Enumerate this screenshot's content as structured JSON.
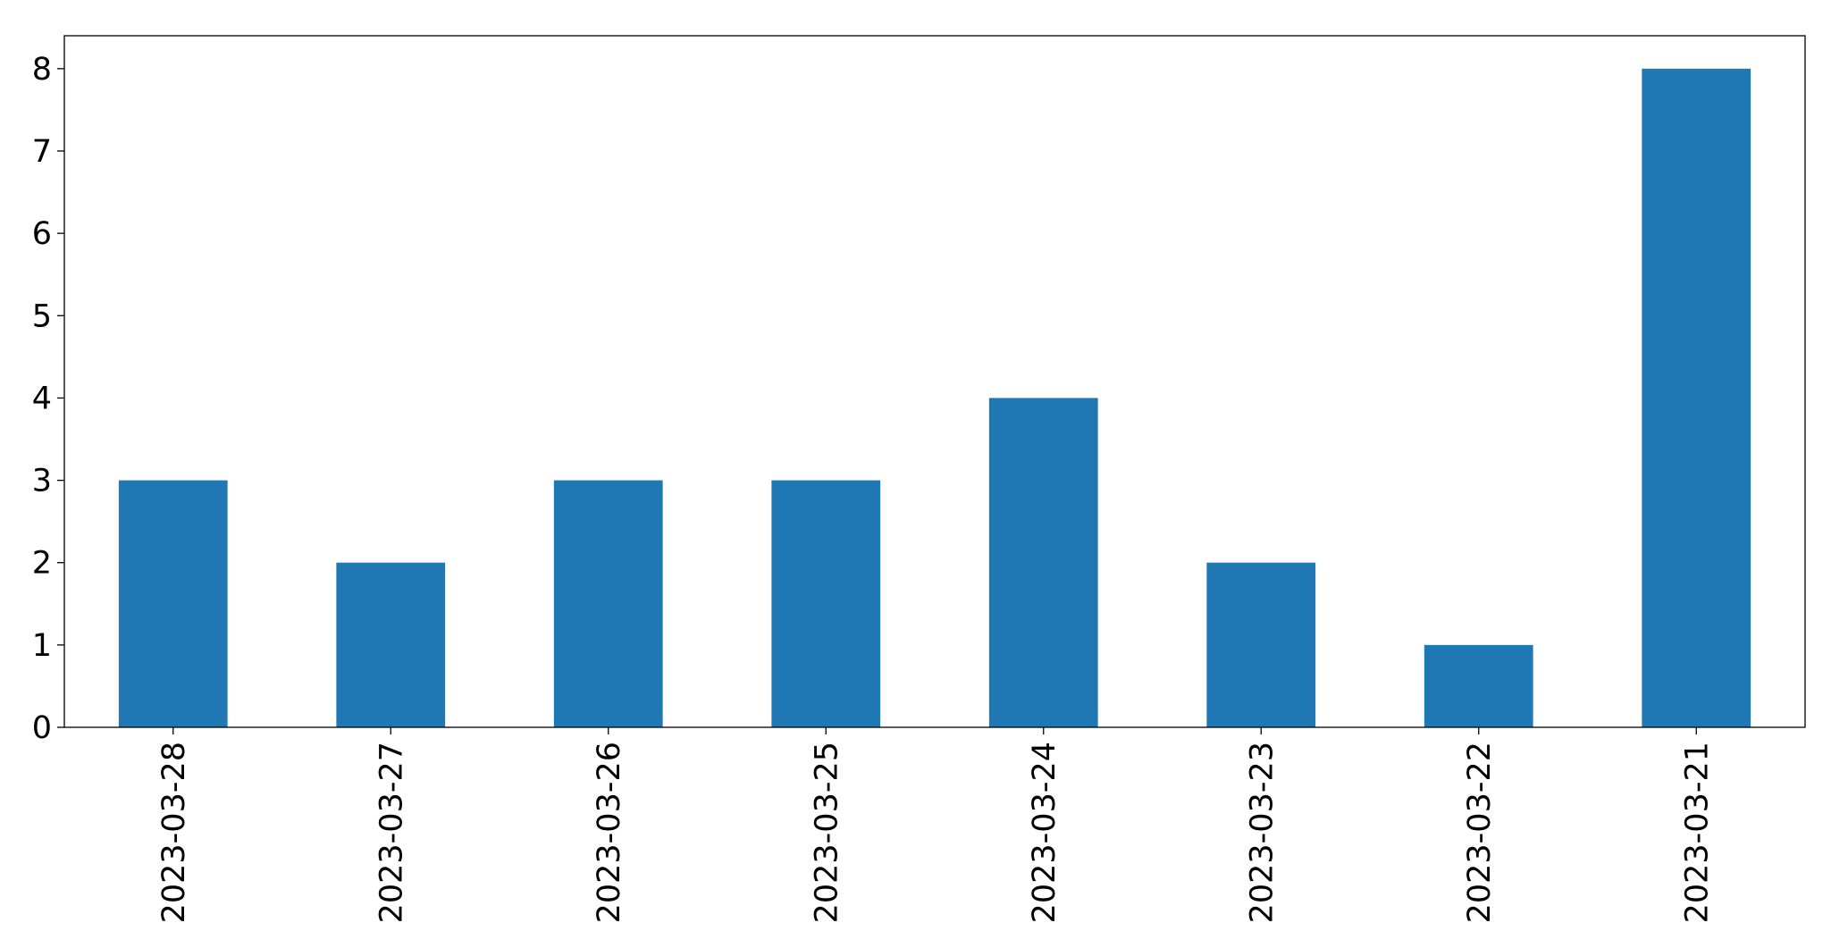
{
  "chart_data": {
    "type": "bar",
    "title": "",
    "xlabel": "",
    "ylabel": "",
    "categories": [
      "2023-03-28",
      "2023-03-27",
      "2023-03-26",
      "2023-03-25",
      "2023-03-24",
      "2023-03-23",
      "2023-03-22",
      "2023-03-21"
    ],
    "values": [
      3,
      2,
      3,
      3,
      4,
      2,
      1,
      8
    ],
    "ylim": [
      0,
      8.4
    ],
    "yticks": [
      0,
      1,
      2,
      3,
      4,
      5,
      6,
      7,
      8
    ],
    "bar_color": "#1f77b4",
    "grid": false,
    "legend": "none"
  }
}
